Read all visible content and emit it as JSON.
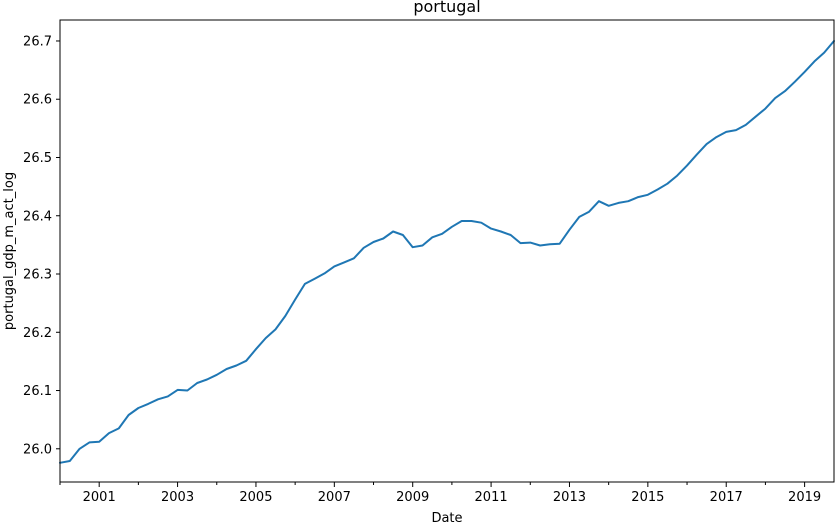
{
  "chart_data": {
    "type": "line",
    "title": "portugal",
    "xlabel": "Date",
    "ylabel": "portugal_gdp_m_act_log",
    "xlim": [
      "2000-01",
      "2019-10"
    ],
    "ylim": [
      25.943,
      26.736
    ],
    "x_ticks": [
      "2001",
      "2003",
      "2005",
      "2007",
      "2009",
      "2011",
      "2013",
      "2015",
      "2017",
      "2019"
    ],
    "y_ticks": [
      "26.0",
      "26.1",
      "26.2",
      "26.3",
      "26.4",
      "26.5",
      "26.6",
      "26.7"
    ],
    "grid": false,
    "line_color": "#1f77b4",
    "series": [
      {
        "x": [
          "2000-01",
          "2000-04",
          "2000-07",
          "2000-10",
          "2001-01",
          "2001-04",
          "2001-07",
          "2001-10",
          "2002-01",
          "2002-04",
          "2002-07",
          "2002-10",
          "2003-01",
          "2003-04",
          "2003-07",
          "2003-10",
          "2004-01",
          "2004-04",
          "2004-07",
          "2004-10",
          "2005-01",
          "2005-04",
          "2005-07",
          "2005-10",
          "2006-01",
          "2006-04",
          "2006-07",
          "2006-10",
          "2007-01",
          "2007-04",
          "2007-07",
          "2007-10",
          "2008-01",
          "2008-04",
          "2008-07",
          "2008-10",
          "2009-01",
          "2009-04",
          "2009-07",
          "2009-10",
          "2010-01",
          "2010-04",
          "2010-07",
          "2010-10",
          "2011-01",
          "2011-04",
          "2011-07",
          "2011-10",
          "2012-01",
          "2012-04",
          "2012-07",
          "2012-10",
          "2013-01",
          "2013-04",
          "2013-07",
          "2013-10",
          "2014-01",
          "2014-04",
          "2014-07",
          "2014-10",
          "2015-01",
          "2015-04",
          "2015-07",
          "2015-10",
          "2016-01",
          "2016-04",
          "2016-07",
          "2016-10",
          "2017-01",
          "2017-04",
          "2017-07",
          "2017-10",
          "2018-01",
          "2018-04",
          "2018-07",
          "2018-10",
          "2019-01",
          "2019-04",
          "2019-07",
          "2019-10"
        ],
        "values": [
          25.976,
          25.979,
          26.0,
          26.011,
          26.012,
          26.027,
          26.035,
          26.058,
          26.07,
          26.077,
          26.085,
          26.09,
          26.101,
          26.1,
          26.113,
          26.119,
          26.127,
          26.137,
          26.143,
          26.151,
          26.171,
          26.19,
          26.205,
          26.228,
          26.256,
          26.283,
          26.292,
          26.301,
          26.313,
          26.32,
          26.327,
          26.345,
          26.355,
          26.361,
          26.373,
          26.367,
          26.346,
          26.349,
          26.363,
          26.369,
          26.381,
          26.391,
          26.391,
          26.388,
          26.378,
          26.373,
          26.367,
          26.353,
          26.354,
          26.349,
          26.351,
          26.352,
          26.376,
          26.398,
          26.407,
          26.425,
          26.417,
          26.422,
          26.425,
          26.432,
          26.436,
          26.445,
          26.455,
          26.469,
          26.486,
          26.505,
          26.523,
          26.535,
          26.544,
          26.547,
          26.556,
          26.57,
          26.584,
          26.602,
          26.614,
          26.63,
          26.647,
          26.665,
          26.68,
          26.7
        ]
      }
    ]
  }
}
